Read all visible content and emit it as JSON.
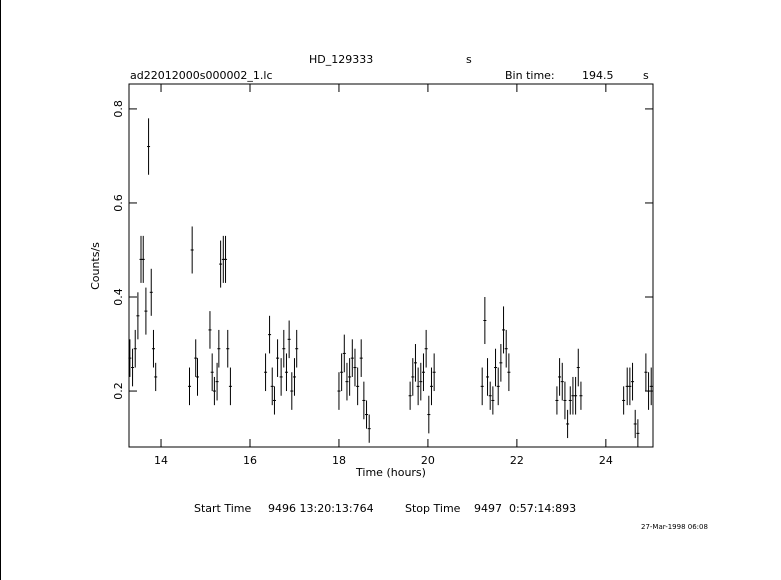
{
  "chart_data": {
    "type": "errorbar",
    "title": "HD_129333",
    "title_unit": "s",
    "subtitle": "ad22012000s000002_1.lc",
    "bin_label": "Bin time:",
    "bin_value": "194.5",
    "bin_unit": "s",
    "xlabel": "Time (hours)",
    "ylabel": "Counts/s",
    "start_label": "Start Time",
    "start_value": "9496 13:20:13:764",
    "stop_label": "Stop Time",
    "stop_value": "9497  0:57:14:893",
    "date_stamp": "27-Mar-1998 06:08",
    "xlim": [
      13.28,
      25.06
    ],
    "ylim": [
      0.081,
      0.853
    ],
    "xticks": [
      14,
      16,
      18,
      20,
      22,
      24
    ],
    "yticks": [
      0.2,
      0.4,
      0.6,
      0.8
    ],
    "color": "#000000",
    "x": [
      13.3,
      13.36,
      13.42,
      13.48,
      13.55,
      13.6,
      13.66,
      13.72,
      13.78,
      13.83,
      13.88,
      14.64,
      14.7,
      14.78,
      14.82,
      15.1,
      15.15,
      15.2,
      15.26,
      15.3,
      15.34,
      15.4,
      15.45,
      15.5,
      15.56,
      16.35,
      16.44,
      16.5,
      16.55,
      16.62,
      16.7,
      16.76,
      16.82,
      16.88,
      16.94,
      17.0,
      17.05,
      18.0,
      18.06,
      18.12,
      18.18,
      18.24,
      18.3,
      18.36,
      18.42,
      18.5,
      18.56,
      18.62,
      18.68,
      19.6,
      19.66,
      19.72,
      19.78,
      19.84,
      19.9,
      19.96,
      20.02,
      20.08,
      20.14,
      21.22,
      21.28,
      21.34,
      21.4,
      21.46,
      21.52,
      21.58,
      21.64,
      21.7,
      21.76,
      21.82,
      22.9,
      22.96,
      23.02,
      23.08,
      23.14,
      23.2,
      23.26,
      23.32,
      23.38,
      23.44,
      24.4,
      24.48,
      24.54,
      24.6,
      24.66,
      24.72,
      24.9,
      24.96,
      25.02
    ],
    "values": [
      0.27,
      0.25,
      0.29,
      0.36,
      0.48,
      0.48,
      0.37,
      0.72,
      0.41,
      0.29,
      0.23,
      0.21,
      0.5,
      0.27,
      0.23,
      0.33,
      0.24,
      0.2,
      0.22,
      0.29,
      0.47,
      0.48,
      0.48,
      0.29,
      0.21,
      0.24,
      0.32,
      0.21,
      0.18,
      0.27,
      0.23,
      0.29,
      0.24,
      0.31,
      0.2,
      0.23,
      0.29,
      0.2,
      0.24,
      0.28,
      0.22,
      0.23,
      0.27,
      0.25,
      0.21,
      0.27,
      0.18,
      0.15,
      0.12,
      0.19,
      0.23,
      0.26,
      0.21,
      0.22,
      0.24,
      0.29,
      0.15,
      0.21,
      0.24,
      0.21,
      0.35,
      0.23,
      0.19,
      0.18,
      0.25,
      0.21,
      0.26,
      0.33,
      0.29,
      0.24,
      0.18,
      0.23,
      0.22,
      0.18,
      0.13,
      0.18,
      0.19,
      0.19,
      0.25,
      0.19,
      0.18,
      0.21,
      0.21,
      0.22,
      0.13,
      0.11,
      0.24,
      0.2,
      0.21
    ],
    "errors": [
      0.04,
      0.04,
      0.04,
      0.05,
      0.05,
      0.05,
      0.05,
      0.06,
      0.05,
      0.04,
      0.03,
      0.04,
      0.05,
      0.04,
      0.04,
      0.04,
      0.04,
      0.03,
      0.04,
      0.04,
      0.05,
      0.05,
      0.05,
      0.04,
      0.04,
      0.04,
      0.04,
      0.04,
      0.03,
      0.04,
      0.04,
      0.04,
      0.04,
      0.04,
      0.04,
      0.04,
      0.04,
      0.04,
      0.04,
      0.04,
      0.04,
      0.04,
      0.04,
      0.04,
      0.04,
      0.04,
      0.04,
      0.03,
      0.03,
      0.03,
      0.04,
      0.04,
      0.04,
      0.04,
      0.04,
      0.04,
      0.04,
      0.04,
      0.04,
      0.04,
      0.05,
      0.04,
      0.03,
      0.03,
      0.04,
      0.04,
      0.04,
      0.05,
      0.04,
      0.04,
      0.03,
      0.04,
      0.04,
      0.04,
      0.03,
      0.03,
      0.04,
      0.04,
      0.04,
      0.03,
      0.03,
      0.04,
      0.04,
      0.04,
      0.03,
      0.03,
      0.04,
      0.04,
      0.04
    ]
  }
}
